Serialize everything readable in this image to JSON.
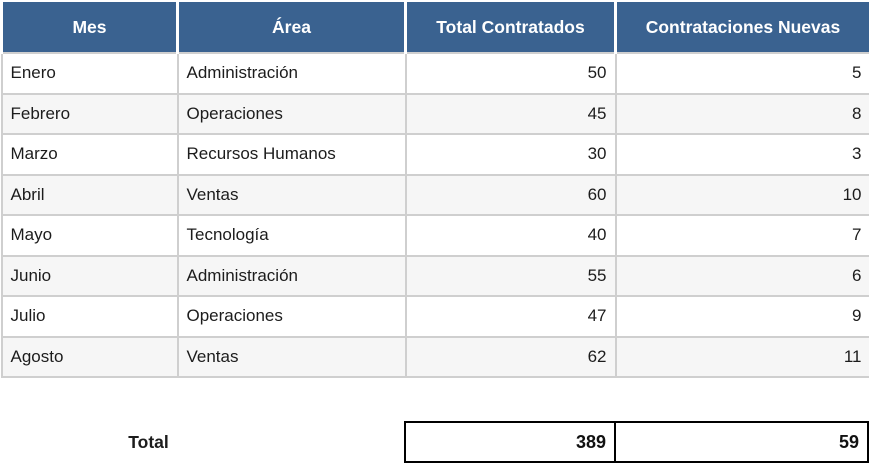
{
  "table": {
    "columns": [
      {
        "label": "Mes",
        "align": "left"
      },
      {
        "label": "Área",
        "align": "left"
      },
      {
        "label": "Total Contratados",
        "align": "right"
      },
      {
        "label": "Contrataciones Nuevas",
        "align": "right"
      }
    ],
    "rows": [
      [
        "Enero",
        "Administración",
        "50",
        "5"
      ],
      [
        "Febrero",
        "Operaciones",
        "45",
        "8"
      ],
      [
        "Marzo",
        "Recursos Humanos",
        "30",
        "3"
      ],
      [
        "Abril",
        "Ventas",
        "60",
        "10"
      ],
      [
        "Mayo",
        "Tecnología",
        "40",
        "7"
      ],
      [
        "Junio",
        "Administración",
        "55",
        "6"
      ],
      [
        "Julio",
        "Operaciones",
        "47",
        "9"
      ],
      [
        "Agosto",
        "Ventas",
        "62",
        "11"
      ]
    ]
  },
  "totals": {
    "label": "Total",
    "total_contratados": "389",
    "contrataciones_nuevas": "59"
  },
  "colors": {
    "header_bg": "#3A6290",
    "header_text": "#FFFFFF",
    "row_alt_bg": "#F6F6F6",
    "row_border": "#CFCFCF",
    "total_border": "#000000"
  }
}
